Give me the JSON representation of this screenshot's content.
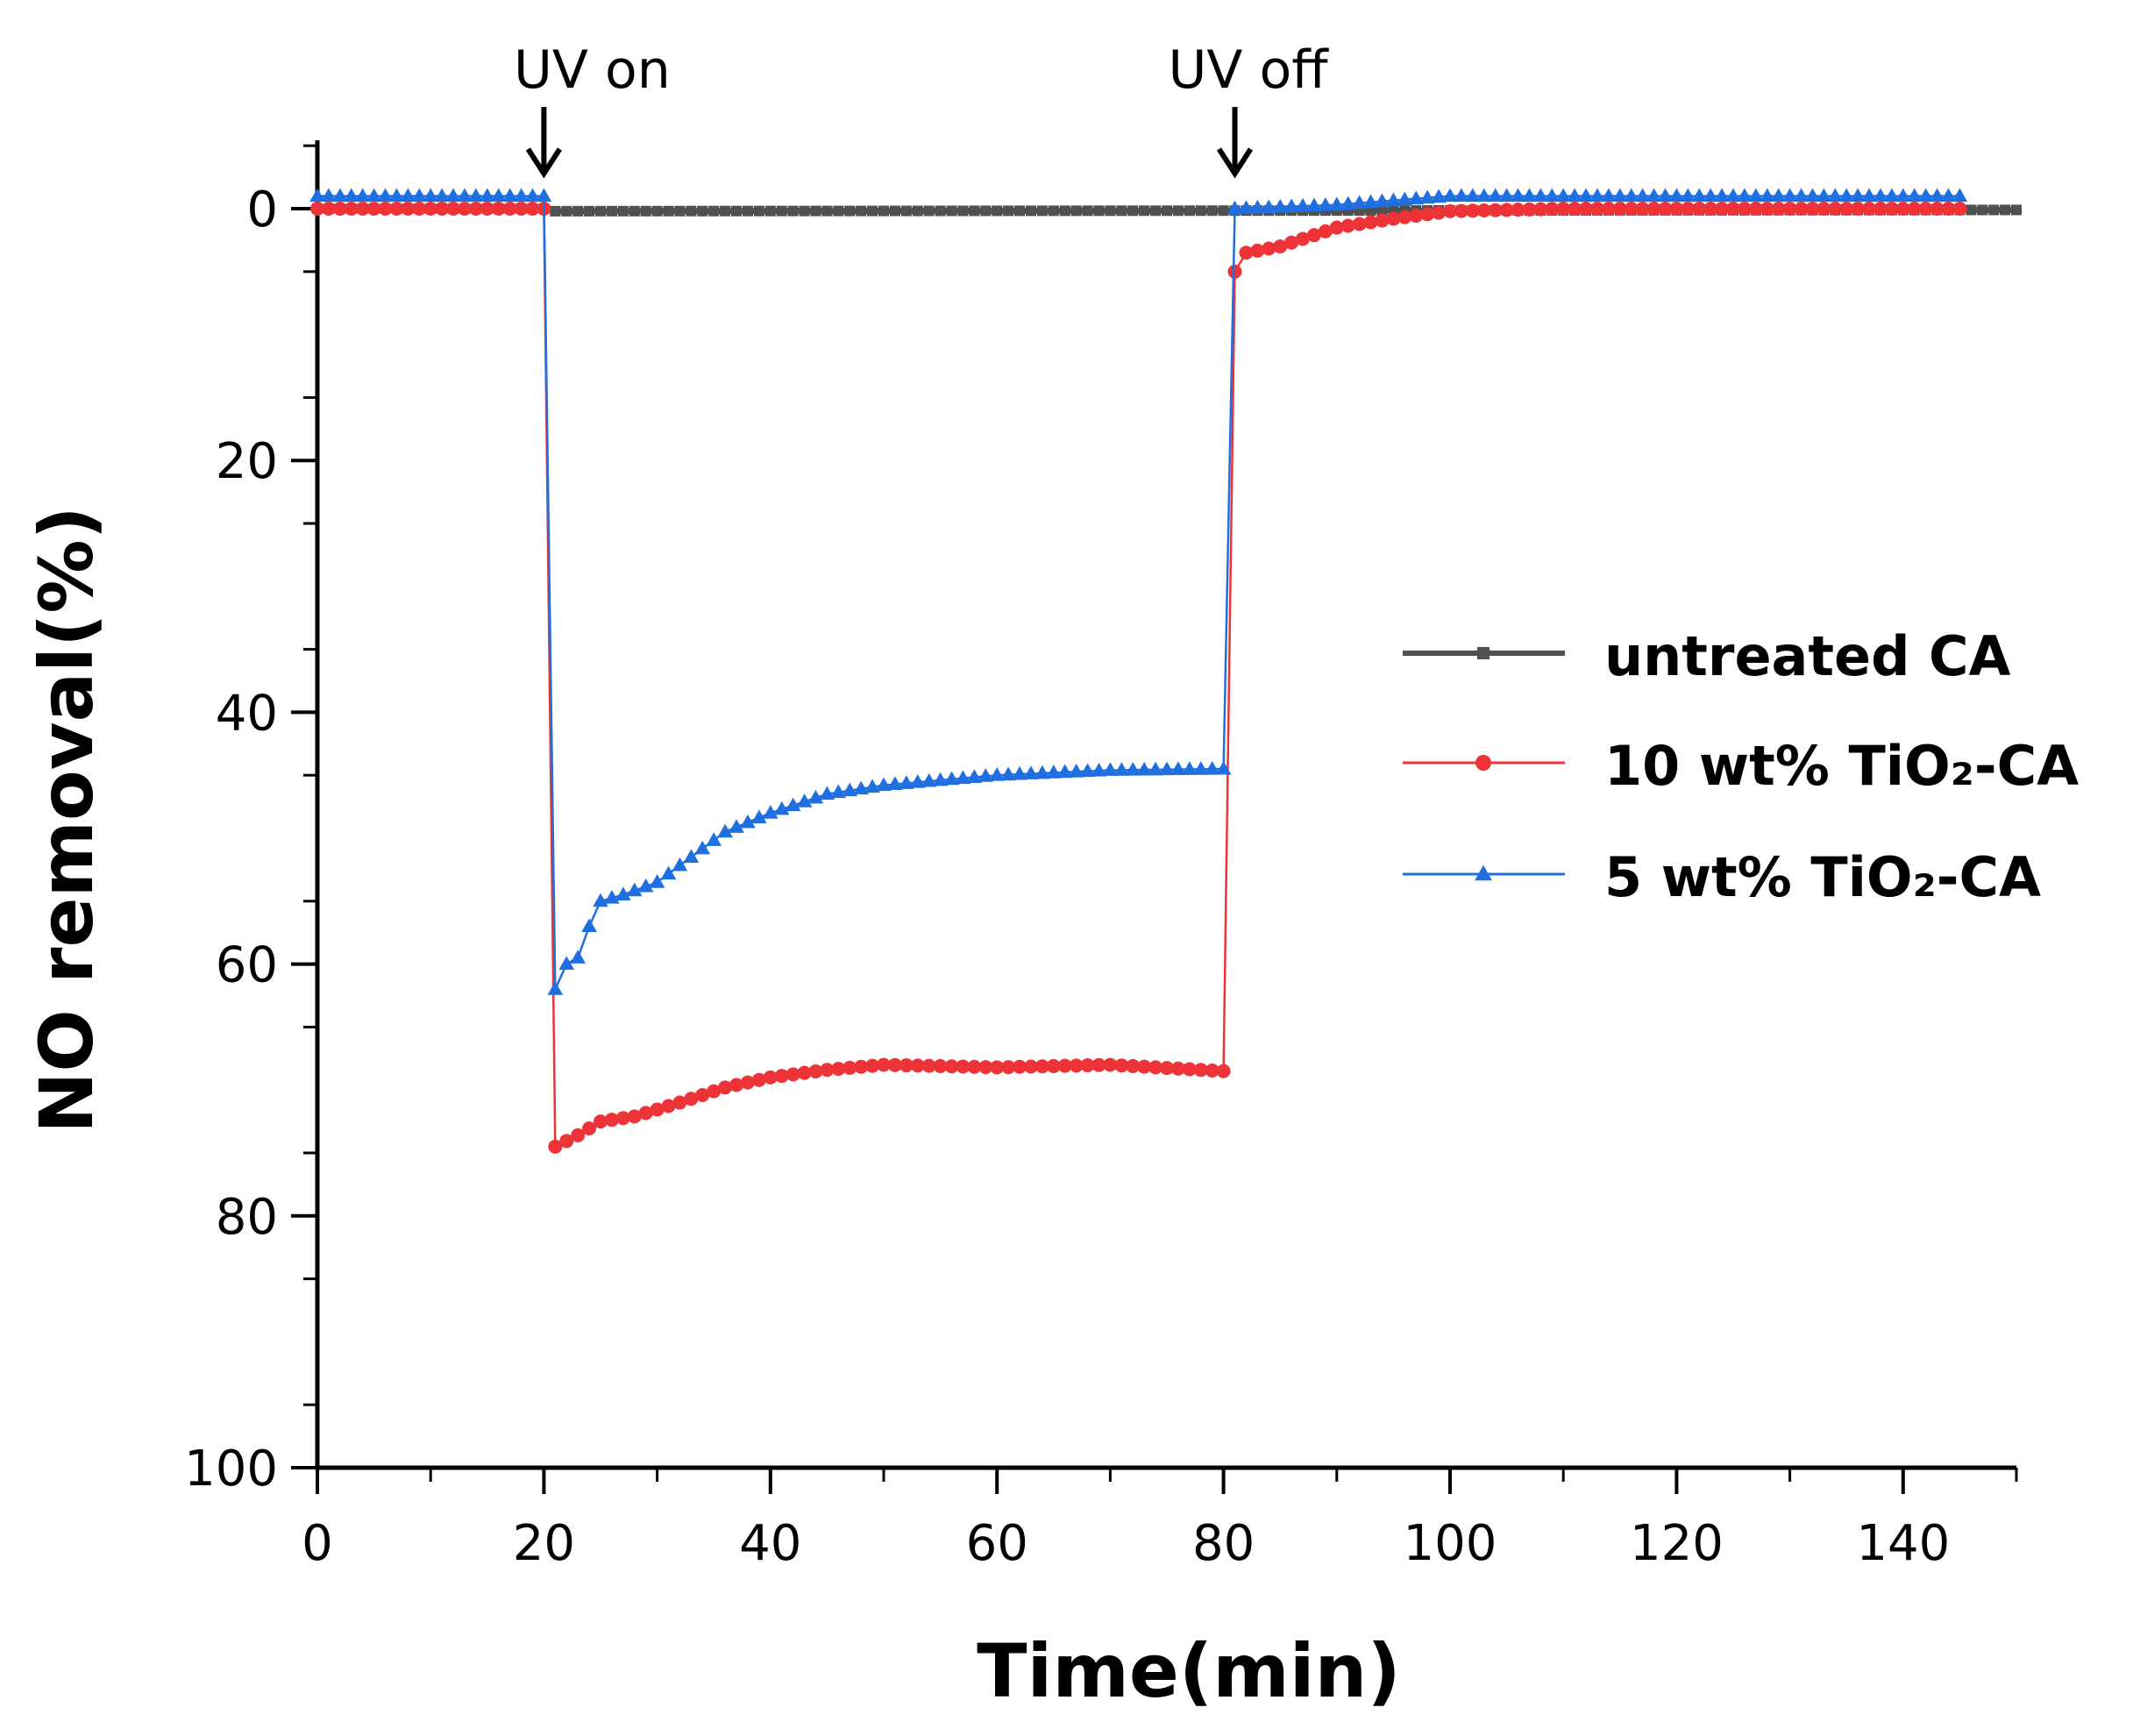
{
  "chart_data": {
    "type": "line",
    "title": "",
    "xlabel": "Time(min)",
    "ylabel": "NO removal(%)",
    "xlim": [
      0,
      150
    ],
    "ylim": [
      0,
      100
    ],
    "y_inverted": true,
    "x_ticks": [
      0,
      20,
      40,
      60,
      80,
      100,
      120,
      140
    ],
    "x_tick_labels": [
      "0",
      "20",
      "40",
      "60",
      "80",
      "100",
      "120",
      "140"
    ],
    "y_ticks": [
      0,
      20,
      40,
      60,
      80,
      100
    ],
    "y_tick_labels": [
      "0",
      "20",
      "40",
      "60",
      "80",
      "100"
    ],
    "grid": false,
    "legend_position": "right",
    "annotations": [
      {
        "text": "UV on",
        "x": 20
      },
      {
        "text": "UV off",
        "x": 81
      }
    ],
    "series": [
      {
        "name": "untreated CA",
        "legend_label": "untreated CA",
        "color": "#505050",
        "marker": "square",
        "x": [
          0,
          20,
          21,
          150
        ],
        "y": [
          0,
          0,
          0.2,
          0.1
        ]
      },
      {
        "name": "10 wt% TiO2-CA",
        "legend_label": "10 wt% TiO₂-CA",
        "color": "#ee3338",
        "marker": "circle",
        "x": [
          0,
          20,
          21,
          23,
          25,
          28,
          32,
          36,
          40,
          45,
          50,
          60,
          70,
          80,
          81,
          82,
          85,
          90,
          95,
          100,
          110,
          120,
          130,
          145
        ],
        "y": [
          0,
          0,
          74.5,
          73.6,
          72.5,
          72.1,
          71.0,
          69.8,
          69.0,
          68.4,
          68.0,
          68.2,
          68.0,
          68.5,
          5.0,
          3.5,
          3.0,
          1.5,
          0.8,
          0.2,
          0.0,
          0.0,
          0.0,
          0.0
        ]
      },
      {
        "name": "5 wt% TiO2-CA",
        "legend_label": "5 wt% TiO₂-CA",
        "color": "#1f6fe0",
        "marker": "triangle",
        "x": [
          0,
          20,
          21,
          22,
          23,
          24,
          25,
          27,
          30,
          33,
          36,
          40,
          45,
          50,
          60,
          70,
          80,
          81,
          90,
          100,
          110,
          120,
          130,
          145
        ],
        "y": [
          -1,
          -1,
          62.0,
          60.0,
          59.5,
          57.0,
          55.0,
          54.5,
          53.5,
          51.5,
          49.5,
          48.0,
          46.5,
          45.8,
          45.0,
          44.6,
          44.5,
          0,
          -0.3,
          -1,
          -1,
          -1,
          -1,
          -1
        ]
      }
    ]
  }
}
